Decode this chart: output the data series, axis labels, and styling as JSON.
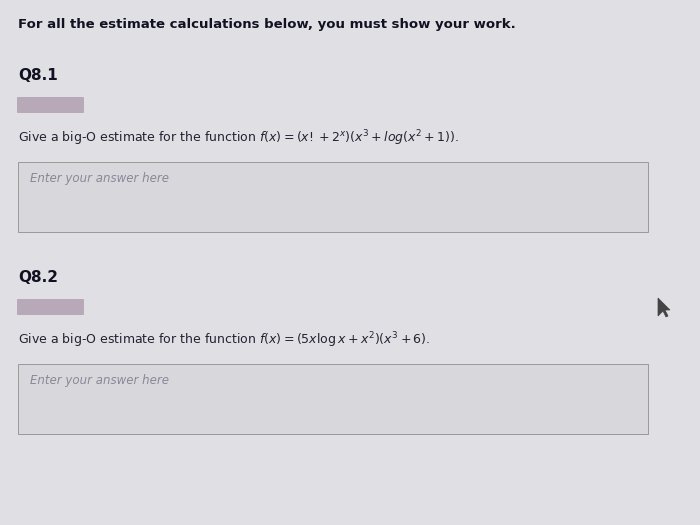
{
  "bg_color": "#c8c8cc",
  "panel_color": "#e0e0e4",
  "header_text": "For all the estimate calculations below, you must show your work.",
  "q1_label": "Q8.1",
  "q1_placeholder": "Enter your answer here",
  "q2_label": "Q8.2",
  "q2_placeholder": "Enter your answer here",
  "answer_box_color": "#d8d8dc",
  "answer_box_edge_color": "#999999",
  "text_color": "#222233",
  "label_color": "#111122",
  "blurred_color": "#b0a0b0",
  "header_fontsize": 9.5,
  "label_fontsize": 11,
  "body_fontsize": 9.0,
  "placeholder_fontsize": 8.5
}
